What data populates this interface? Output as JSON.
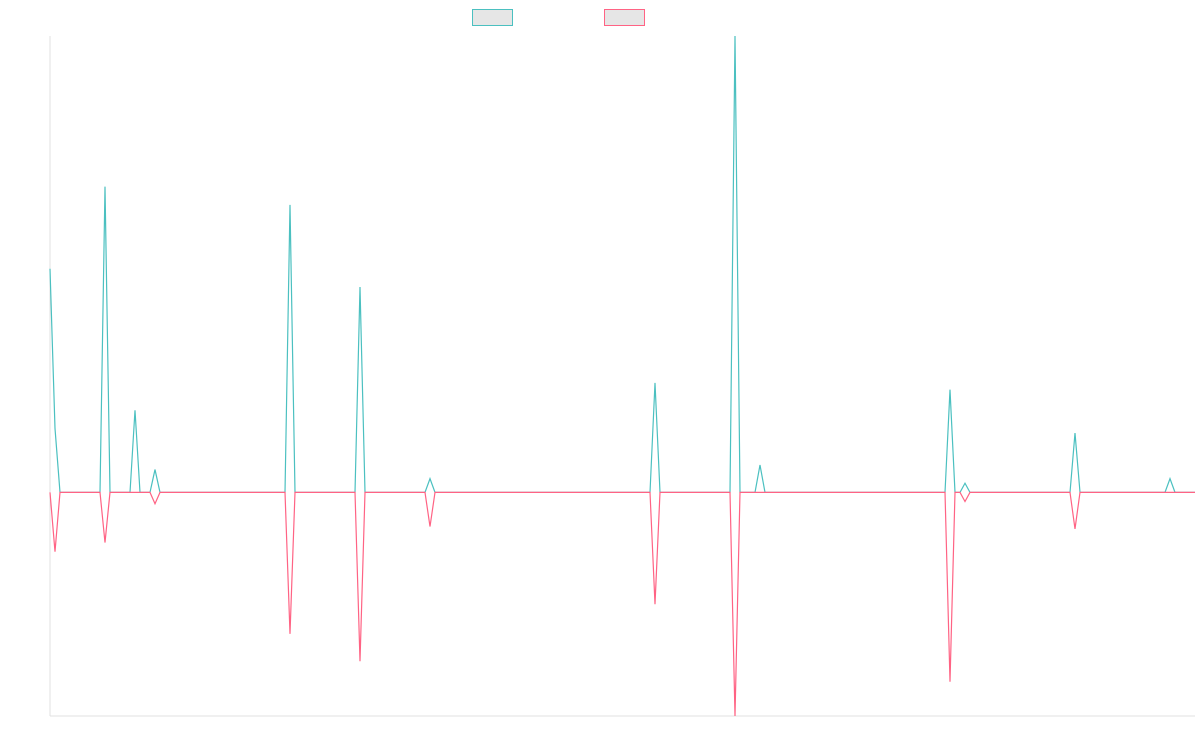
{
  "chart_data": {
    "type": "line",
    "title": "",
    "xlabel": "",
    "ylabel": "",
    "legend_position": "top-center",
    "grid": false,
    "x_count": 230,
    "ylim": [
      -4.9,
      10.0
    ],
    "series": [
      {
        "name": "",
        "color": "#4bc0c0",
        "fill_color": "#e6e6e6",
        "points": [
          [
            0,
            4.9
          ],
          [
            1,
            1.4
          ],
          [
            2,
            0
          ],
          [
            10,
            0
          ],
          [
            11,
            6.7
          ],
          [
            12,
            0
          ],
          [
            16,
            0
          ],
          [
            17,
            1.8
          ],
          [
            18,
            0
          ],
          [
            20,
            0
          ],
          [
            21,
            0.5
          ],
          [
            22,
            0
          ],
          [
            47,
            0
          ],
          [
            48,
            6.3
          ],
          [
            49,
            0
          ],
          [
            61,
            0
          ],
          [
            62,
            4.5
          ],
          [
            63,
            0
          ],
          [
            75,
            0
          ],
          [
            76,
            0.3
          ],
          [
            77,
            0
          ],
          [
            120,
            0
          ],
          [
            121,
            2.4
          ],
          [
            122,
            0
          ],
          [
            136,
            0
          ],
          [
            137,
            10.0
          ],
          [
            138,
            0
          ],
          [
            141,
            0
          ],
          [
            142,
            0.6
          ],
          [
            143,
            0
          ],
          [
            179,
            0
          ],
          [
            180,
            2.25
          ],
          [
            181,
            0
          ],
          [
            182,
            0
          ],
          [
            183,
            0.2
          ],
          [
            184,
            0
          ],
          [
            204,
            0
          ],
          [
            205,
            1.3
          ],
          [
            206,
            0
          ],
          [
            223,
            0
          ],
          [
            224,
            0.3
          ],
          [
            225,
            0
          ],
          [
            229,
            0
          ]
        ]
      },
      {
        "name": "",
        "color": "#ff6384",
        "fill_color": "#e6e6e6",
        "points": [
          [
            0,
            0
          ],
          [
            1,
            -1.3
          ],
          [
            2,
            0
          ],
          [
            10,
            0
          ],
          [
            11,
            -1.1
          ],
          [
            12,
            0
          ],
          [
            16,
            0
          ],
          [
            17,
            0
          ],
          [
            18,
            0
          ],
          [
            20,
            0
          ],
          [
            21,
            -0.25
          ],
          [
            22,
            0
          ],
          [
            47,
            0
          ],
          [
            48,
            -3.1
          ],
          [
            49,
            0
          ],
          [
            61,
            0
          ],
          [
            62,
            -3.7
          ],
          [
            63,
            0
          ],
          [
            75,
            0
          ],
          [
            76,
            -0.75
          ],
          [
            77,
            0
          ],
          [
            120,
            0
          ],
          [
            121,
            -2.45
          ],
          [
            122,
            0
          ],
          [
            136,
            0
          ],
          [
            137,
            -4.9
          ],
          [
            138,
            0
          ],
          [
            141,
            0
          ],
          [
            142,
            0
          ],
          [
            143,
            0
          ],
          [
            179,
            0
          ],
          [
            180,
            -4.15
          ],
          [
            181,
            0
          ],
          [
            182,
            0
          ],
          [
            183,
            -0.2
          ],
          [
            184,
            0
          ],
          [
            204,
            0
          ],
          [
            205,
            -0.8
          ],
          [
            206,
            0
          ],
          [
            223,
            0
          ],
          [
            224,
            0
          ],
          [
            225,
            0
          ],
          [
            229,
            0
          ]
        ]
      }
    ]
  }
}
